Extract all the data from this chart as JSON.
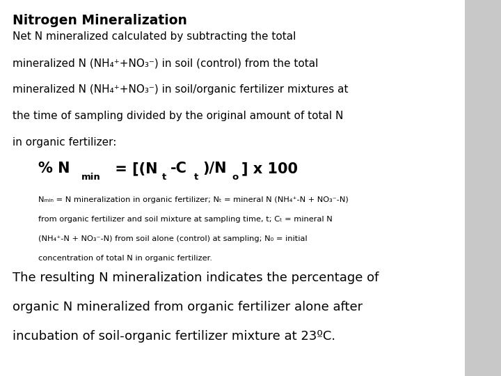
{
  "bg_color": "#c8c8c8",
  "text_color": "#000000",
  "title": "Nitrogen Mineralization",
  "body1_lines": [
    "Net N mineralized calculated by subtracting the total",
    "mineralized N (NH₄⁺+NO₃⁻) in soil (control) from the total",
    "mineralized N (NH₄⁺+NO₃⁻) in soil/organic fertilizer mixtures at",
    "the time of sampling divided by the original amount of total N",
    "in organic fertilizer:"
  ],
  "legend_lines": [
    "Nₘᵢₙ = N mineralization in organic fertilizer; Nₜ = mineral N (NH₄⁺-N + NO₃⁻-N)",
    "from organic fertilizer and soil mixture at sampling time, t; Cₜ = mineral N",
    "(NH₄⁺-N + NO₃⁻-N) from soil alone (control) at sampling; N₀ = initial",
    "concentration of total N in organic fertilizer."
  ],
  "footer_lines": [
    "The resulting N mineralization indicates the percentage of",
    "organic N mineralized from organic fertilizer alone after",
    "incubation of soil-organic fertilizer mixture at 23ºC."
  ]
}
